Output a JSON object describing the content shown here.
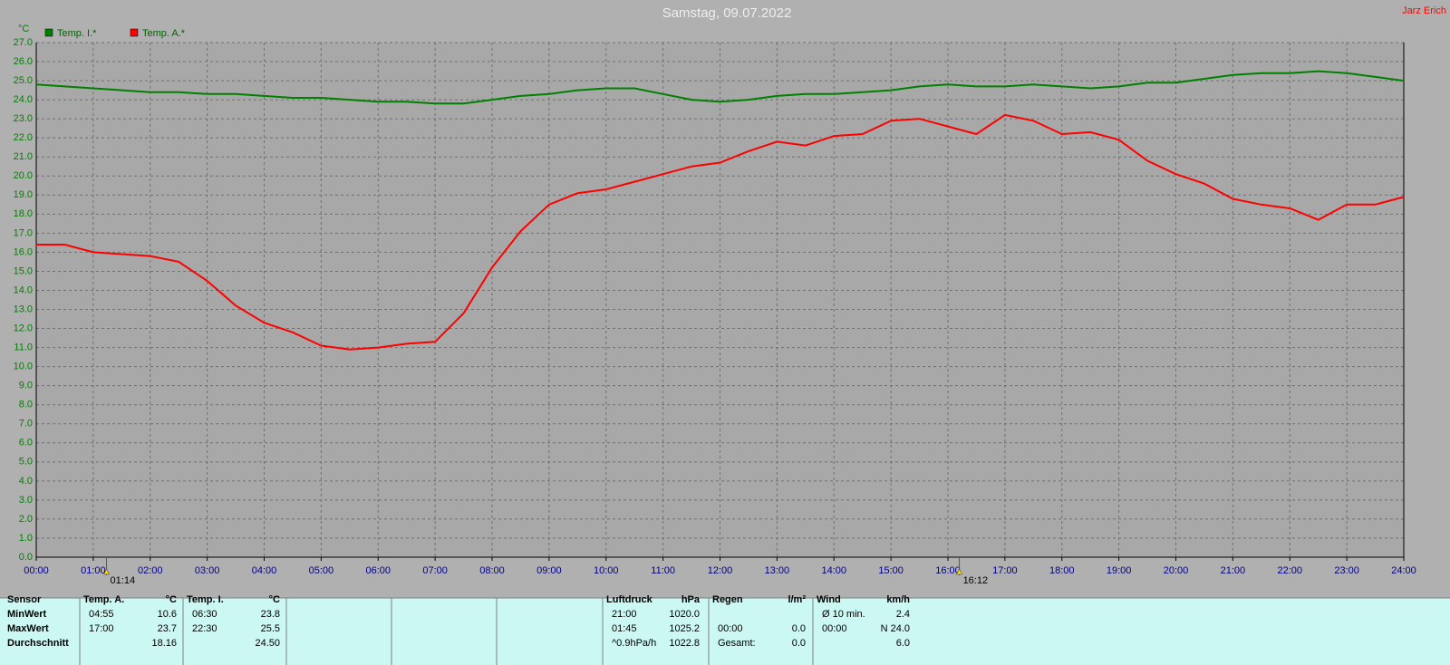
{
  "chart_data": {
    "type": "line",
    "title": "Samstag, 09.07.2022",
    "author": "Jarz Erich",
    "y_unit": "°C",
    "x": [
      0,
      0.5,
      1,
      1.5,
      2,
      2.5,
      3,
      3.5,
      4,
      4.5,
      5,
      5.5,
      6,
      6.5,
      7,
      7.5,
      8,
      8.5,
      9,
      9.5,
      10,
      10.5,
      11,
      11.5,
      12,
      12.5,
      13,
      13.5,
      14,
      14.5,
      15,
      15.5,
      16,
      16.5,
      17,
      17.5,
      18,
      18.5,
      19,
      19.5,
      20,
      20.5,
      21,
      21.5,
      22,
      22.5,
      23,
      23.5,
      24
    ],
    "series": [
      {
        "name": "Temp. I.*",
        "color": "#008000",
        "values": [
          24.8,
          24.7,
          24.6,
          24.5,
          24.4,
          24.4,
          24.3,
          24.3,
          24.2,
          24.1,
          24.1,
          24.0,
          23.9,
          23.9,
          23.8,
          23.8,
          24.0,
          24.2,
          24.3,
          24.5,
          24.6,
          24.6,
          24.3,
          24.0,
          23.9,
          24.0,
          24.2,
          24.3,
          24.3,
          24.4,
          24.5,
          24.7,
          24.8,
          24.7,
          24.7,
          24.8,
          24.7,
          24.6,
          24.7,
          24.9,
          24.9,
          25.1,
          25.3,
          25.4,
          25.4,
          25.5,
          25.4,
          25.2,
          25.0
        ]
      },
      {
        "name": "Temp. A.*",
        "color": "#ff0000",
        "values": [
          16.4,
          16.4,
          16.0,
          15.9,
          15.8,
          15.5,
          14.5,
          13.2,
          12.3,
          11.8,
          11.1,
          10.9,
          11.0,
          11.2,
          11.3,
          12.8,
          15.2,
          17.1,
          18.5,
          19.1,
          19.3,
          19.7,
          20.1,
          20.5,
          20.7,
          21.3,
          21.8,
          21.6,
          22.1,
          22.2,
          22.9,
          23.0,
          22.6,
          22.2,
          23.2,
          22.9,
          22.2,
          22.3,
          21.9,
          20.8,
          20.1,
          19.6,
          18.8,
          18.5,
          18.3,
          17.7,
          18.5,
          18.5,
          18.9
        ]
      }
    ],
    "xlim": [
      0,
      24
    ],
    "xticks": [
      {
        "value": 0,
        "label": "00:00"
      },
      {
        "value": 1,
        "label": "01:00"
      },
      {
        "value": 2,
        "label": "02:00"
      },
      {
        "value": 3,
        "label": "03:00"
      },
      {
        "value": 4,
        "label": "04:00"
      },
      {
        "value": 5,
        "label": "05:00"
      },
      {
        "value": 6,
        "label": "06:00"
      },
      {
        "value": 7,
        "label": "07:00"
      },
      {
        "value": 8,
        "label": "08:00"
      },
      {
        "value": 9,
        "label": "09:00"
      },
      {
        "value": 10,
        "label": "10:00"
      },
      {
        "value": 11,
        "label": "11:00"
      },
      {
        "value": 12,
        "label": "12:00"
      },
      {
        "value": 13,
        "label": "13:00"
      },
      {
        "value": 14,
        "label": "14:00"
      },
      {
        "value": 15,
        "label": "15:00"
      },
      {
        "value": 16,
        "label": "16:00"
      },
      {
        "value": 17,
        "label": "17:00"
      },
      {
        "value": 18,
        "label": "18:00"
      },
      {
        "value": 19,
        "label": "19:00"
      },
      {
        "value": 20,
        "label": "20:00"
      },
      {
        "value": 21,
        "label": "21:00"
      },
      {
        "value": 22,
        "label": "22:00"
      },
      {
        "value": 23,
        "label": "23:00"
      },
      {
        "value": 24,
        "label": "24:00"
      }
    ],
    "ylim": [
      0,
      27
    ],
    "yticks": [
      {
        "value": 0,
        "label": "0.0"
      },
      {
        "value": 1,
        "label": "1.0"
      },
      {
        "value": 2,
        "label": "2.0"
      },
      {
        "value": 3,
        "label": "3.0"
      },
      {
        "value": 4,
        "label": "4.0"
      },
      {
        "value": 5,
        "label": "5.0"
      },
      {
        "value": 6,
        "label": "6.0"
      },
      {
        "value": 7,
        "label": "7.0"
      },
      {
        "value": 8,
        "label": "8.0"
      },
      {
        "value": 9,
        "label": "9.0"
      },
      {
        "value": 10,
        "label": "10.0"
      },
      {
        "value": 11,
        "label": "11.0"
      },
      {
        "value": 12,
        "label": "12.0"
      },
      {
        "value": 13,
        "label": "13.0"
      },
      {
        "value": 14,
        "label": "14.0"
      },
      {
        "value": 15,
        "label": "15.0"
      },
      {
        "value": 16,
        "label": "16.0"
      },
      {
        "value": 17,
        "label": "17.0"
      },
      {
        "value": 18,
        "label": "18.0"
      },
      {
        "value": 19,
        "label": "19.0"
      },
      {
        "value": 20,
        "label": "20.0"
      },
      {
        "value": 21,
        "label": "21.0"
      },
      {
        "value": 22,
        "label": "22.0"
      },
      {
        "value": 23,
        "label": "23.0"
      },
      {
        "value": 24,
        "label": "24.0"
      },
      {
        "value": 25,
        "label": "25.0"
      },
      {
        "value": 26,
        "label": "26.0"
      },
      {
        "value": 27,
        "label": "27.0"
      }
    ],
    "grid": true,
    "annotations": [
      {
        "x": 1.2333,
        "label": "01:14"
      },
      {
        "x": 16.2,
        "label": "16:12"
      }
    ]
  },
  "stats": {
    "row_header": "Sensor",
    "row_labels": [
      "MinWert",
      "MaxWert",
      "Durchschnitt"
    ],
    "columns": [
      {
        "title": "Temp. A.",
        "unit": "°C",
        "cells": [
          {
            "left": "04:55",
            "right": "10.6"
          },
          {
            "left": "17:00",
            "right": "23.7"
          },
          {
            "right": "18.16"
          }
        ]
      },
      {
        "title": "Temp. I.",
        "unit": "°C",
        "cells": [
          {
            "left": "06:30",
            "right": "23.8"
          },
          {
            "left": "22:30",
            "right": "25.5"
          },
          {
            "right": "24.50"
          }
        ]
      },
      {
        "title": "Luftdruck",
        "unit": "hPa",
        "cells": [
          {
            "left": "21:00",
            "right": "1020.0"
          },
          {
            "left": "01:45",
            "right": "1025.2"
          },
          {
            "left": "^0.9hPa/h",
            "right": "1022.8"
          }
        ]
      },
      {
        "title": "Regen",
        "unit": "l/m²",
        "cells": [
          null,
          {
            "left": "00:00",
            "right": "0.0"
          },
          {
            "left": "Gesamt:",
            "right": "0.0"
          }
        ]
      },
      {
        "title": "Wind",
        "unit": "km/h",
        "cells": [
          {
            "left": "Ø 10 min.",
            "right": "2.4"
          },
          {
            "left": "00:00",
            "right": "N 24.0"
          },
          {
            "right": "6.0"
          }
        ]
      }
    ]
  }
}
